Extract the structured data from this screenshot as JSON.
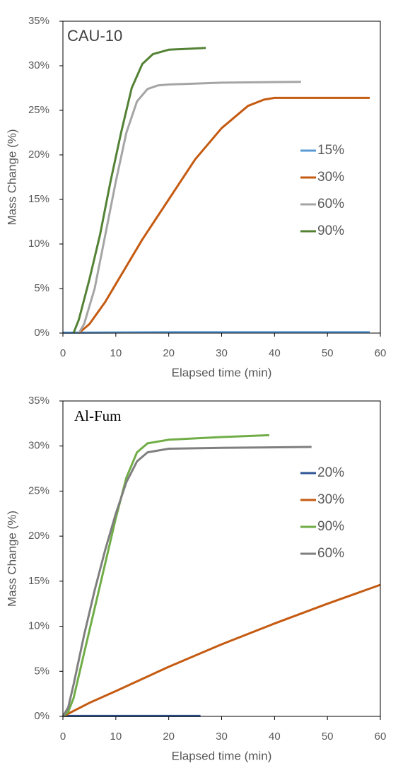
{
  "chart_data": [
    {
      "type": "line",
      "title": "CAU-10",
      "x_label": "Elapsed time (min)",
      "y_label": "Mass Change (%)",
      "xlim": [
        0,
        60
      ],
      "xticks": [
        0,
        10,
        20,
        30,
        40,
        50,
        60
      ],
      "ylim": [
        0,
        35
      ],
      "yticks": [
        {
          "value": 0,
          "label": "0%"
        },
        {
          "value": 5,
          "label": "5%"
        },
        {
          "value": 10,
          "label": "10%"
        },
        {
          "value": 15,
          "label": "15%"
        },
        {
          "value": 20,
          "label": "20%"
        },
        {
          "value": 25,
          "label": "25%"
        },
        {
          "value": 30,
          "label": "30%"
        },
        {
          "value": 35,
          "label": "35%"
        }
      ],
      "series": [
        {
          "name": "15%",
          "color": "#5b9bd5",
          "x": [
            0,
            20,
            40,
            58
          ],
          "values": [
            0.05,
            0.1,
            0.1,
            0.1
          ]
        },
        {
          "name": "30%",
          "color": "#c55a11",
          "x": [
            3,
            5,
            8,
            10,
            15,
            20,
            25,
            30,
            35,
            38,
            40,
            50,
            58
          ],
          "values": [
            0,
            1,
            3.5,
            5.5,
            10.5,
            15,
            19.5,
            23,
            25.5,
            26.2,
            26.4,
            26.4,
            26.4
          ]
        },
        {
          "name": "60%",
          "color": "#a5a5a5",
          "x": [
            3,
            4,
            6,
            8,
            10,
            12,
            14,
            16,
            18,
            20,
            30,
            45
          ],
          "values": [
            0,
            1,
            5,
            11,
            17,
            22.5,
            26,
            27.4,
            27.8,
            27.9,
            28.1,
            28.2
          ]
        },
        {
          "name": "90%",
          "color": "#548235",
          "x": [
            2,
            3,
            5,
            7,
            9,
            11,
            13,
            15,
            17,
            20,
            27
          ],
          "values": [
            0,
            1.5,
            6,
            11,
            17,
            22.5,
            27.5,
            30.2,
            31.3,
            31.8,
            32
          ]
        }
      ]
    },
    {
      "type": "line",
      "title": "Al-Fum",
      "x_label": "Elapsed time (min)",
      "y_label": "Mass Change (%)",
      "xlim": [
        0,
        60
      ],
      "xticks": [
        0,
        10,
        20,
        30,
        40,
        50,
        60
      ],
      "ylim": [
        0,
        35
      ],
      "yticks": [
        {
          "value": 0,
          "label": "0%"
        },
        {
          "value": 5,
          "label": "5%"
        },
        {
          "value": 10,
          "label": "10%"
        },
        {
          "value": 15,
          "label": "15%"
        },
        {
          "value": 20,
          "label": "20%"
        },
        {
          "value": 25,
          "label": "25%"
        },
        {
          "value": 30,
          "label": "30%"
        },
        {
          "value": 35,
          "label": "35%"
        }
      ],
      "series": [
        {
          "name": "20%",
          "color": "#2f5597",
          "x": [
            0,
            10,
            20,
            26
          ],
          "values": [
            0.05,
            0.05,
            0.05,
            0.05
          ]
        },
        {
          "name": "30%",
          "color": "#c55a11",
          "x": [
            0,
            5,
            10,
            20,
            30,
            40,
            50,
            60
          ],
          "values": [
            0,
            1.5,
            2.8,
            5.5,
            8,
            10.3,
            12.5,
            14.6
          ]
        },
        {
          "name": "90%",
          "color": "#70ad47",
          "x": [
            0,
            1,
            2,
            4,
            6,
            8,
            10,
            12,
            14,
            16,
            20,
            30,
            39
          ],
          "values": [
            0,
            0.5,
            2,
            7,
            12,
            17,
            22,
            26.5,
            29.3,
            30.3,
            30.7,
            31,
            31.2
          ]
        },
        {
          "name": "60%",
          "color": "#7f7f7f",
          "x": [
            0,
            1,
            2,
            4,
            6,
            8,
            10,
            12,
            14,
            16,
            20,
            30,
            47
          ],
          "values": [
            0,
            1,
            3.5,
            9,
            14,
            18.5,
            22.5,
            26,
            28.3,
            29.3,
            29.7,
            29.8,
            29.9
          ]
        }
      ]
    }
  ]
}
